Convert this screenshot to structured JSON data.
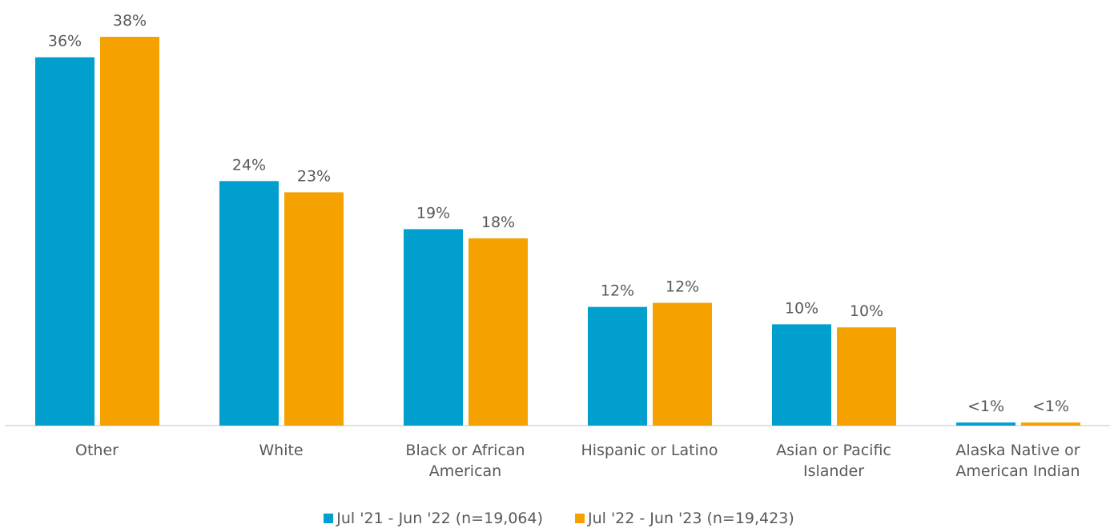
{
  "chart_data": {
    "type": "bar",
    "categories": [
      "Other",
      "White",
      "Black or African American",
      "Hispanic or Latino",
      "Asian or Pacific Islander",
      "Alaska Native or American Indian"
    ],
    "series": [
      {
        "name": "Jul '21 - Jun '22 (n=19,064)",
        "color": "#009fcd",
        "values": [
          36.0,
          23.9,
          19.2,
          11.6,
          9.9,
          0.3
        ],
        "value_labels": [
          "36%",
          "24%",
          "19%",
          "12%",
          "10%",
          "<1%"
        ]
      },
      {
        "name": "Jul '22 - Jun '23 (n=19,423)",
        "color": "#f5a200",
        "values": [
          38.0,
          22.8,
          18.3,
          12.0,
          9.6,
          0.3
        ],
        "value_labels": [
          "38%",
          "23%",
          "18%",
          "12%",
          "10%",
          "<1%"
        ]
      }
    ],
    "legend": "bottom"
  }
}
